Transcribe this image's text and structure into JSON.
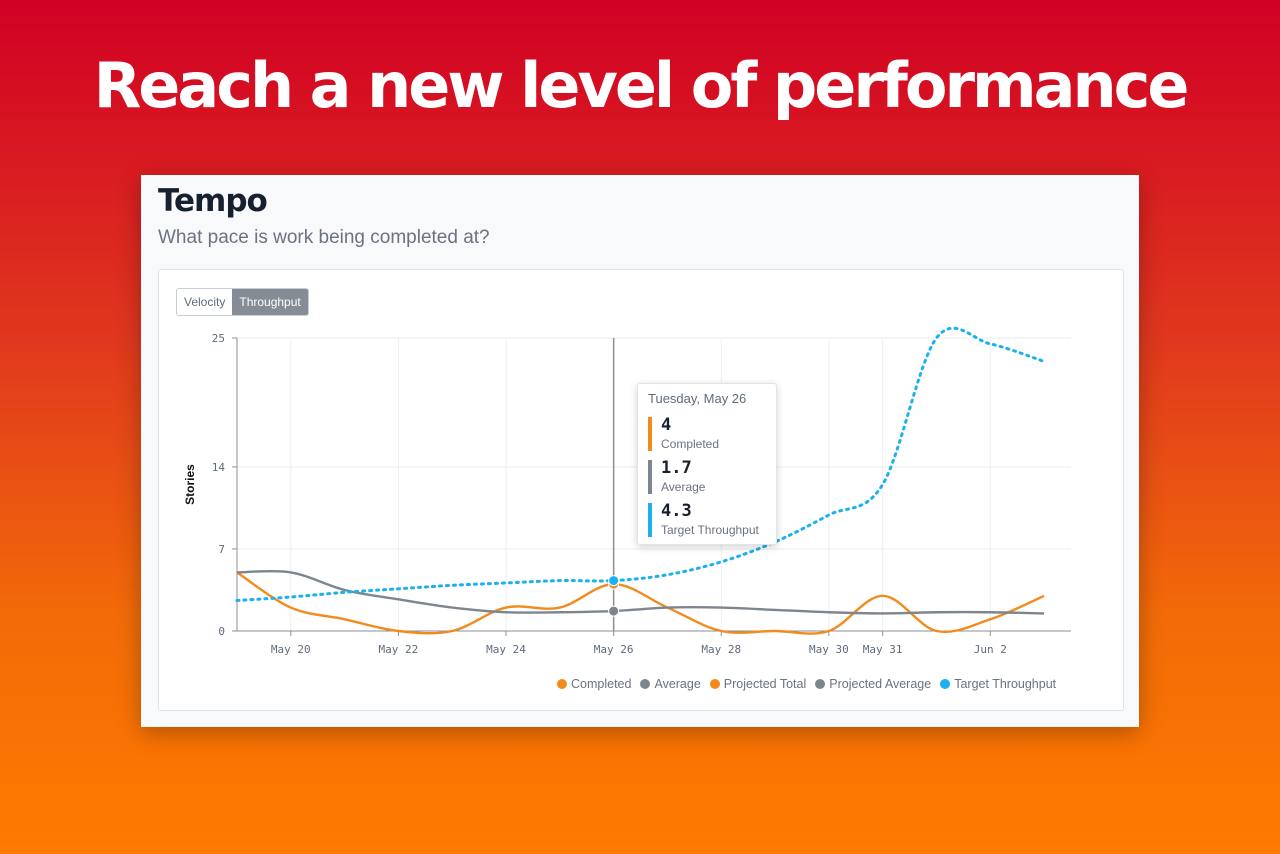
{
  "headline": "Reach a new level of performance",
  "card": {
    "title": "Tempo",
    "subtitle": "What pace is work being completed at?",
    "tabs": [
      {
        "label": "Velocity",
        "active": false
      },
      {
        "label": "Throughput",
        "active": true
      }
    ]
  },
  "tooltip": {
    "date": "Tuesday, May 26",
    "items": [
      {
        "value": "4",
        "label": "Completed",
        "color": "#f28a1c"
      },
      {
        "value": "1.7",
        "label": "Average",
        "color": "#7d858f"
      },
      {
        "value": "4.3",
        "label": "Target Throughput",
        "color": "#1ab1ee"
      }
    ]
  },
  "legend": [
    {
      "label": "Completed",
      "color": "#f28a1c"
    },
    {
      "label": "Average",
      "color": "#7d858f"
    },
    {
      "label": "Projected Total",
      "color": "#f28a1c"
    },
    {
      "label": "Projected Average",
      "color": "#7d858f"
    },
    {
      "label": "Target Throughput",
      "color": "#1ab1ee"
    }
  ],
  "chart_data": {
    "type": "line",
    "ylabel": "Stories",
    "ylim": [
      0,
      25
    ],
    "yticks": [
      "0",
      "7",
      "14",
      "25"
    ],
    "xlim": [
      19,
      34.5
    ],
    "xticks": [
      {
        "x": 20,
        "label": "May 20"
      },
      {
        "x": 22,
        "label": "May 22"
      },
      {
        "x": 24,
        "label": "May 24"
      },
      {
        "x": 26,
        "label": "May 26"
      },
      {
        "x": 28,
        "label": "May 28"
      },
      {
        "x": 30,
        "label": "May 30"
      },
      {
        "x": 31,
        "label": "May 31"
      },
      {
        "x": 33,
        "label": "Jun 2"
      }
    ],
    "hover_x": 26,
    "series": [
      {
        "name": "Completed",
        "color": "#f28a1c",
        "style": "solid",
        "x": [
          19,
          20,
          21,
          22,
          23,
          24,
          25,
          26,
          27,
          28,
          29,
          30,
          31,
          32,
          33,
          34
        ],
        "y": [
          5,
          2,
          1,
          0,
          0,
          2,
          2,
          4,
          2,
          0,
          0,
          0,
          3,
          0,
          1,
          3
        ]
      },
      {
        "name": "Average",
        "color": "#7d858f",
        "style": "solid",
        "x": [
          19,
          20,
          21,
          22,
          23,
          24,
          25,
          26,
          27,
          28,
          29,
          30,
          31,
          32,
          33,
          34
        ],
        "y": [
          5,
          5,
          3.5,
          2.7,
          2,
          1.6,
          1.6,
          1.7,
          2,
          2,
          1.8,
          1.6,
          1.5,
          1.6,
          1.6,
          1.5
        ]
      },
      {
        "name": "Target Throughput",
        "color": "#1ab1ee",
        "style": "dotted",
        "x": [
          19,
          20,
          21,
          22,
          23,
          24,
          25,
          26,
          27,
          28,
          29,
          30,
          31,
          32,
          33,
          34
        ],
        "y": [
          2.6,
          2.9,
          3.3,
          3.6,
          3.9,
          4.1,
          4.3,
          4.3,
          4.8,
          5.9,
          7.6,
          9.9,
          12.5,
          25,
          24.5,
          23
        ]
      }
    ]
  }
}
